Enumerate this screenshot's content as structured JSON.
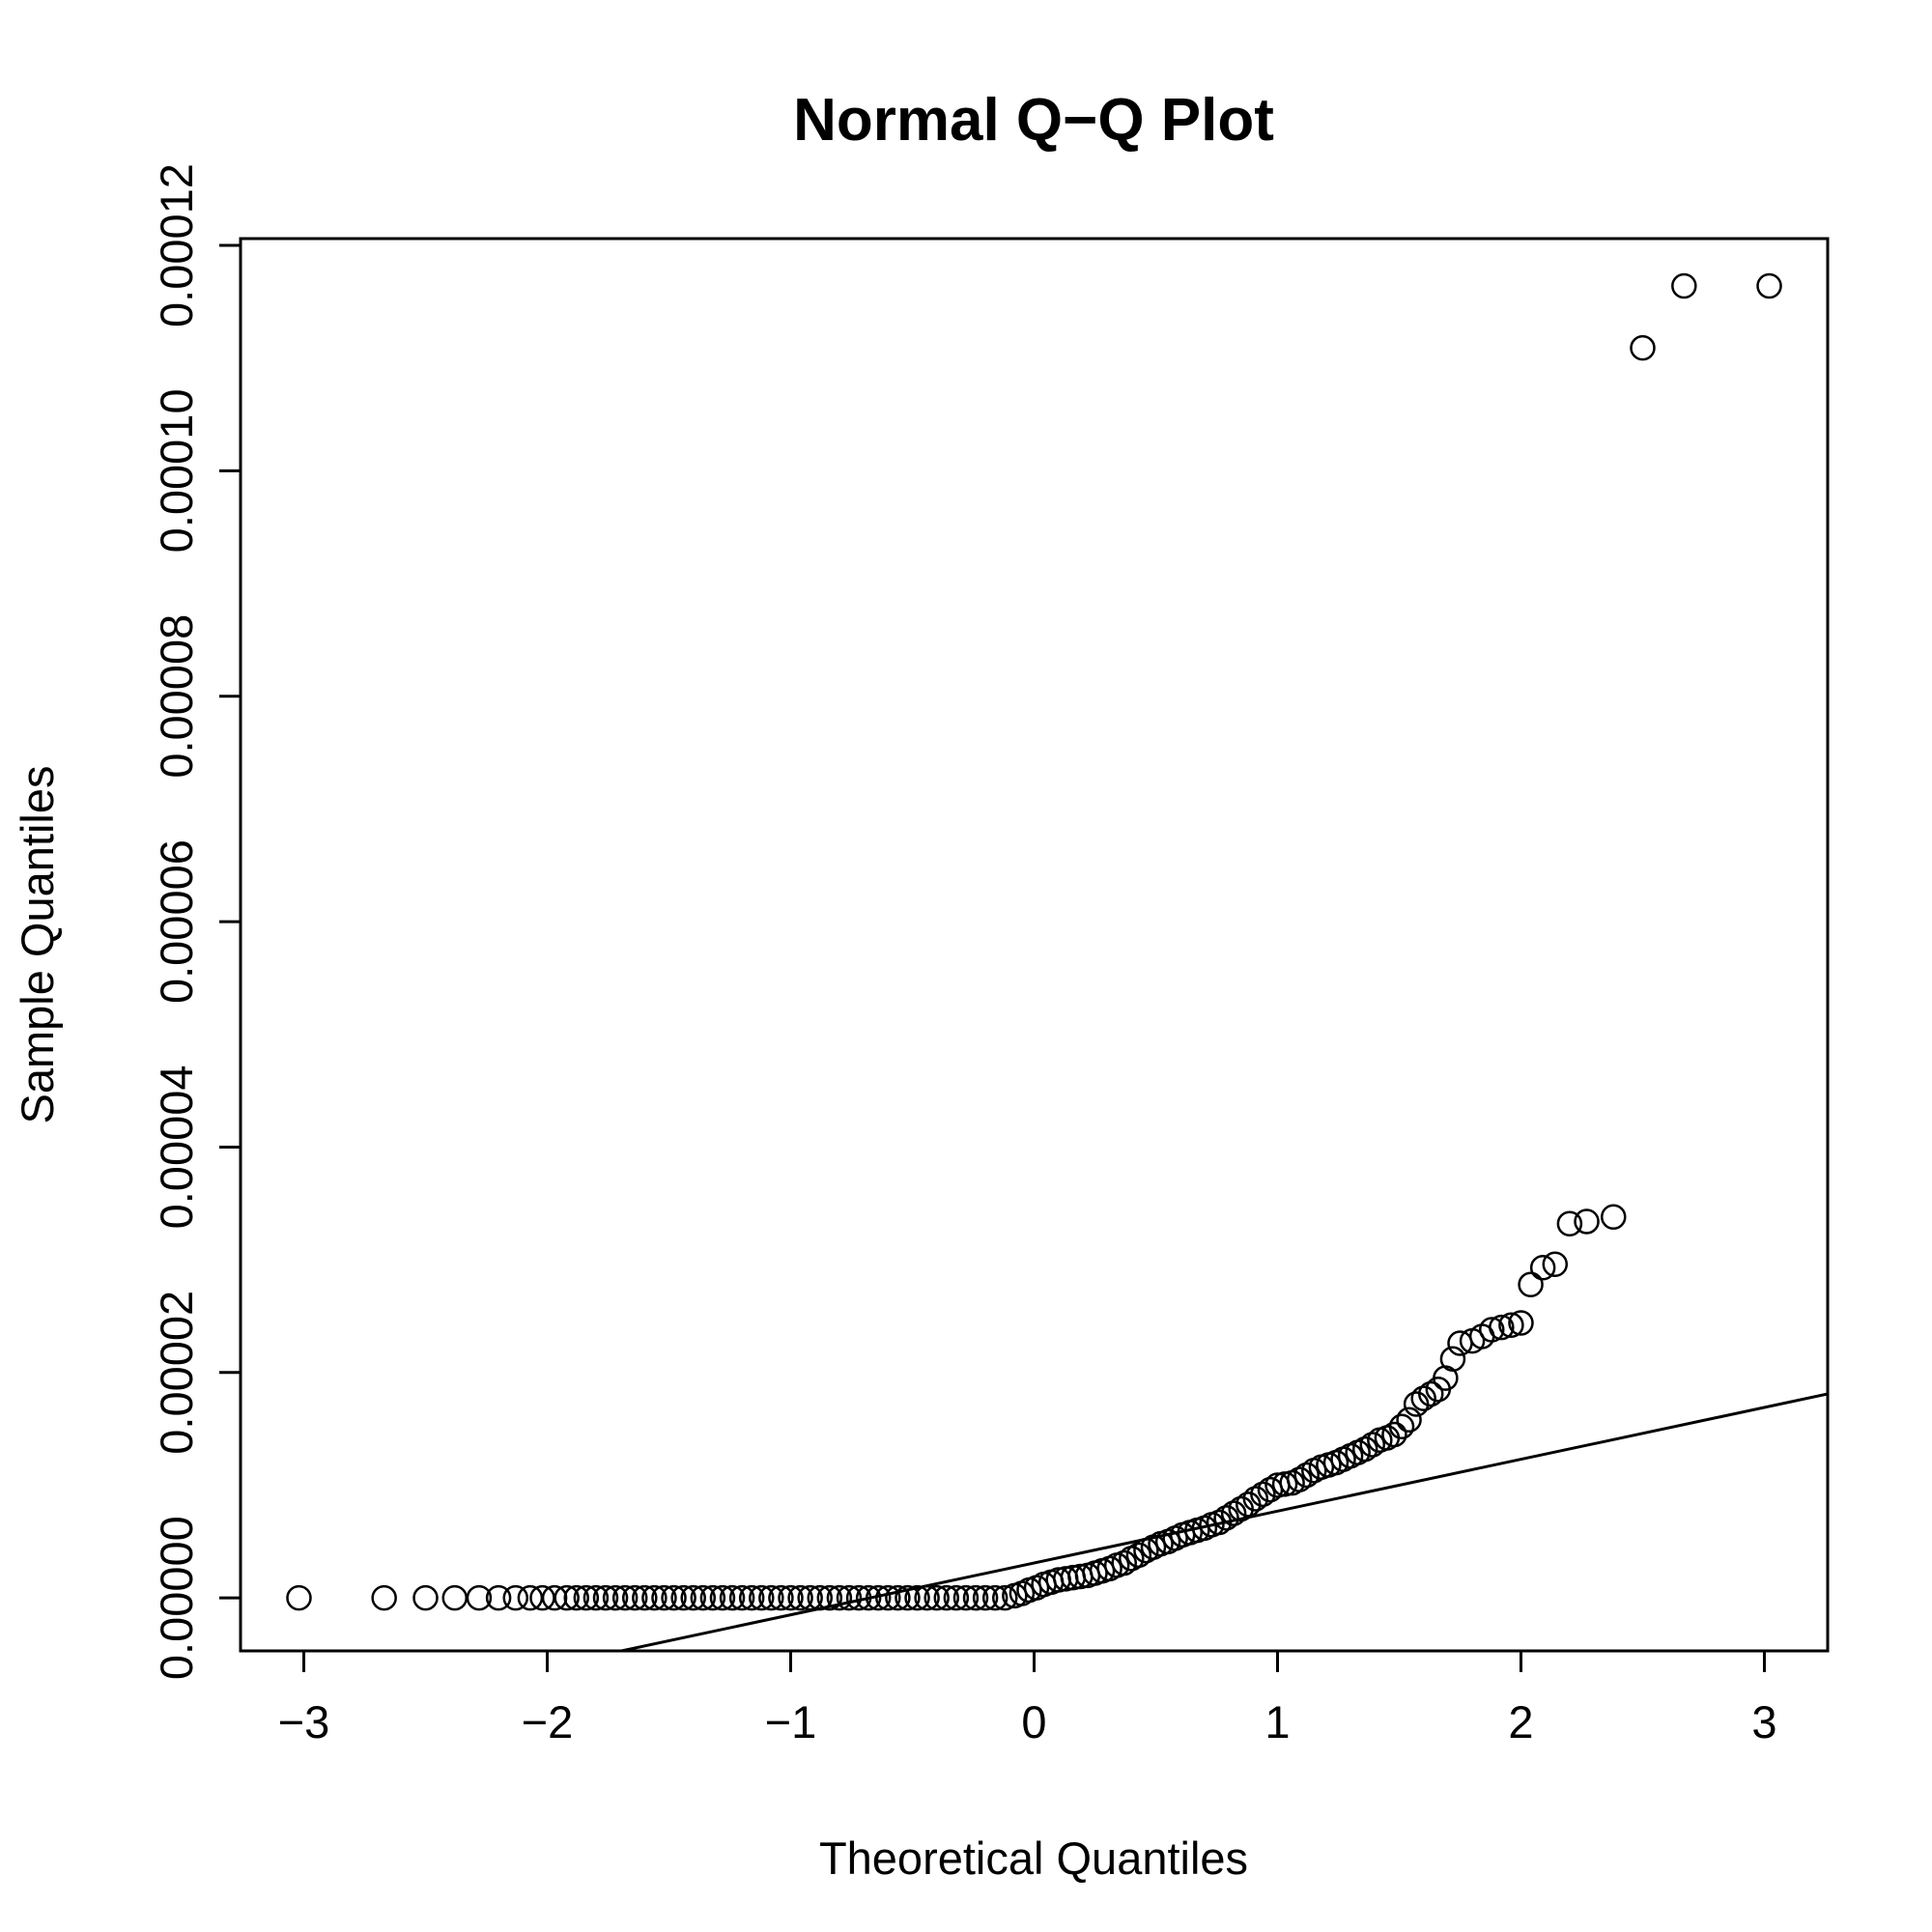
{
  "chart_data": {
    "type": "scatter",
    "title": "Normal Q−Q Plot",
    "xlabel": "Theoretical Quantiles",
    "ylabel": "Sample Quantiles",
    "xlim": [
      -3.26,
      3.26
    ],
    "ylim": [
      -4.7e-06,
      0.0001206
    ],
    "x_ticks": [
      -3,
      -2,
      -1,
      0,
      1,
      2,
      3
    ],
    "x_tick_labels": [
      "−3",
      "−2",
      "−1",
      "0",
      "1",
      "2",
      "3"
    ],
    "y_ticks": [
      0,
      2e-05,
      4e-05,
      6e-05,
      8e-05,
      0.0001,
      0.00012
    ],
    "y_tick_labels": [
      "0.00000",
      "0.00002",
      "0.00004",
      "0.00006",
      "0.00008",
      "0.00010",
      "0.00012"
    ],
    "reference_line": {
      "intercept": 3.1e-06,
      "slope": 4.6e-06
    },
    "grid": false,
    "legend": "none",
    "colors": {
      "points": "#000000",
      "line": "#000000",
      "background": "#ffffff"
    },
    "series": [
      {
        "x": [
          -3.02,
          -2.67,
          -2.5,
          -2.38,
          -2.28,
          -2.2,
          -2.13,
          -2.07,
          -2.02,
          -1.97,
          -1.92,
          -1.88,
          -1.84,
          -1.8,
          -1.76,
          -1.72,
          -1.68,
          -1.64,
          -1.6,
          -1.56,
          -1.52,
          -1.48,
          -1.44,
          -1.4,
          -1.36,
          -1.32,
          -1.28,
          -1.24,
          -1.2,
          -1.16,
          -1.12,
          -1.08,
          -1.04,
          -1.0,
          -0.96,
          -0.92,
          -0.88,
          -0.84,
          -0.8,
          -0.76,
          -0.72,
          -0.68,
          -0.64,
          -0.6,
          -0.56,
          -0.52,
          -0.48,
          -0.44,
          -0.4,
          -0.36,
          -0.32,
          -0.28,
          -0.24,
          -0.2,
          -0.16,
          -0.12,
          -0.08,
          -0.05,
          -0.02,
          0.01,
          0.04,
          0.07,
          0.1,
          0.13,
          0.16,
          0.19,
          0.22,
          0.25,
          0.28,
          0.31,
          0.34,
          0.37,
          0.4,
          0.43,
          0.46,
          0.49,
          0.52,
          0.55,
          0.58,
          0.61,
          0.64,
          0.67,
          0.7,
          0.73,
          0.76,
          0.79,
          0.82,
          0.85,
          0.88,
          0.91,
          0.94,
          0.97,
          1.0,
          1.03,
          1.06,
          1.09,
          1.12,
          1.15,
          1.18,
          1.21,
          1.24,
          1.27,
          1.3,
          1.33,
          1.36,
          1.39,
          1.42,
          1.45,
          1.48,
          1.51,
          1.54,
          1.57,
          1.6,
          1.63,
          1.66,
          1.69,
          1.72,
          1.75,
          1.8,
          1.84,
          1.88,
          1.92,
          1.96,
          2.0,
          2.04,
          2.09,
          2.14,
          2.2,
          2.27,
          2.38,
          2.5,
          2.67,
          3.02
        ],
        "y": [
          0,
          0,
          0,
          0,
          0,
          0,
          0,
          0,
          0,
          0,
          0,
          0,
          0,
          0,
          0,
          0,
          0,
          0,
          0,
          0,
          0,
          0,
          0,
          0,
          0,
          0,
          0,
          0,
          0,
          0,
          0,
          0,
          0,
          0,
          0,
          0,
          0,
          0,
          0,
          0,
          0,
          0,
          0,
          0,
          0,
          0,
          0,
          0,
          0,
          0,
          0,
          0,
          0,
          0,
          0,
          0,
          2e-07,
          4e-07,
          7e-07,
          9e-07,
          1.2e-06,
          1.4e-06,
          1.6e-06,
          1.7e-06,
          1.8e-06,
          1.9e-06,
          2e-06,
          2.2e-06,
          2.4e-06,
          2.6e-06,
          2.9e-06,
          3.1e-06,
          3.5e-06,
          3.8e-06,
          4.2e-06,
          4.5e-06,
          4.8e-06,
          5e-06,
          5.3e-06,
          5.6e-06,
          5.8e-06,
          6e-06,
          6.2e-06,
          6.5e-06,
          6.7e-06,
          7.1e-06,
          7.5e-06,
          7.9e-06,
          8.3e-06,
          8.8e-06,
          9.2e-06,
          9.6e-06,
          1e-05,
          1.01e-05,
          1.02e-05,
          1.05e-05,
          1.09e-05,
          1.13e-05,
          1.16e-05,
          1.18e-05,
          1.2e-05,
          1.23e-05,
          1.26e-05,
          1.29e-05,
          1.32e-05,
          1.36e-05,
          1.4e-05,
          1.42e-05,
          1.45e-05,
          1.52e-05,
          1.58e-05,
          1.72e-05,
          1.77e-05,
          1.81e-05,
          1.85e-05,
          1.95e-05,
          2.12e-05,
          2.26e-05,
          2.28e-05,
          2.32e-05,
          2.38e-05,
          2.4e-05,
          2.42e-05,
          2.44e-05,
          2.78e-05,
          2.93e-05,
          2.96e-05,
          3.32e-05,
          3.34e-05,
          3.38e-05,
          0.0001109,
          0.0001164,
          0.0001164
        ]
      }
    ]
  }
}
